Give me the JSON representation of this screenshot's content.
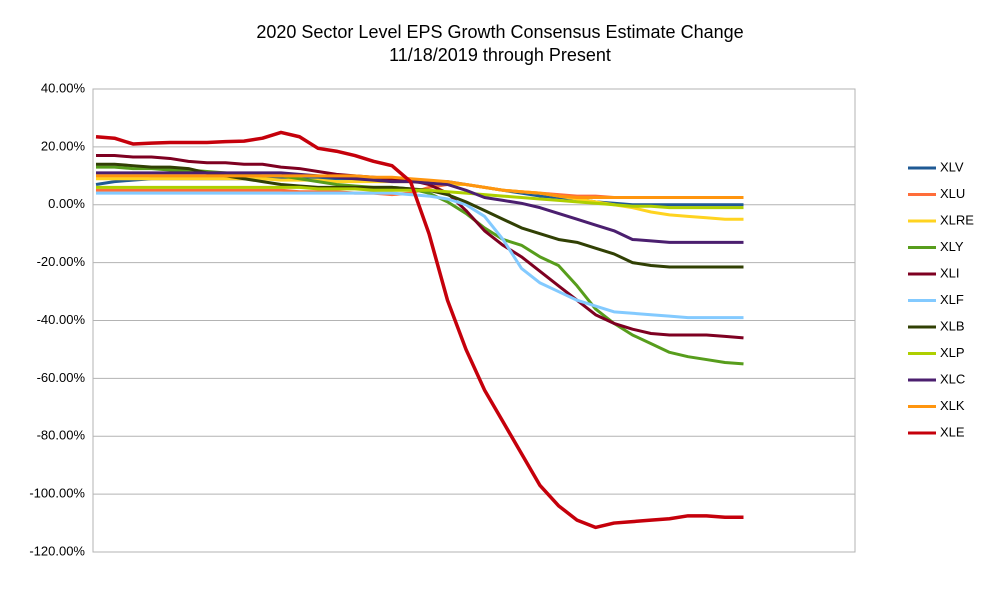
{
  "chart_data": {
    "type": "line",
    "title": "2020 Sector Level EPS Growth Consensus Estimate Change",
    "subtitle": "11/18/2019 through Present",
    "categories": [
      null,
      null,
      null,
      null,
      null,
      null,
      null,
      null,
      null,
      null,
      null,
      null,
      null,
      null,
      null,
      null,
      null,
      null,
      null,
      null,
      null,
      null,
      null,
      null,
      null,
      null,
      null,
      null,
      null,
      null,
      null,
      null,
      null,
      null,
      null,
      null
    ],
    "ylim": [
      -120,
      40
    ],
    "yticks": [
      {
        "value": -120,
        "label": "-120.00%"
      },
      {
        "value": -100,
        "label": "-100.00%"
      },
      {
        "value": -80,
        "label": "-80.00%"
      },
      {
        "value": -60,
        "label": "-60.00%"
      },
      {
        "value": -40,
        "label": "-40.00%"
      },
      {
        "value": -20,
        "label": "-20.00%"
      },
      {
        "value": 0,
        "label": "0.00%"
      },
      {
        "value": 20,
        "label": "20.00%"
      },
      {
        "value": 40,
        "label": "40.00%"
      }
    ],
    "grid": true,
    "legend": "right",
    "series": [
      {
        "name": "XLV",
        "color": "#1f5a94",
        "values": [
          7,
          8,
          8.5,
          9,
          9,
          9,
          9,
          9,
          9,
          9,
          9,
          9,
          9,
          9,
          9,
          9,
          8.5,
          8,
          8,
          8,
          7,
          6,
          5,
          4,
          3,
          2.5,
          2,
          1,
          0.5,
          0,
          0,
          0,
          0,
          0,
          0,
          0
        ]
      },
      {
        "name": "XLU",
        "color": "#ff6d3a",
        "values": [
          5,
          5,
          5,
          5,
          5,
          5,
          5,
          5,
          5,
          5,
          5,
          4.5,
          4.5,
          4.5,
          4,
          4,
          3.5,
          4,
          6,
          7,
          7,
          6,
          5,
          4.5,
          4,
          3.5,
          3,
          3,
          2.5,
          2.5,
          2.5,
          2.5,
          2.5,
          2.5,
          2.5,
          2.5
        ]
      },
      {
        "name": "XLRE",
        "color": "#ffd320",
        "values": [
          9,
          9,
          9,
          9,
          9,
          9,
          9,
          9,
          9,
          9,
          8.5,
          8.5,
          8.5,
          8,
          8,
          8,
          8,
          8,
          7.5,
          7,
          7,
          6,
          5,
          4.5,
          4,
          3,
          2,
          1,
          0,
          -1,
          -2.5,
          -3.5,
          -4,
          -4.5,
          -5,
          -5
        ]
      },
      {
        "name": "XLY",
        "color": "#579d1c",
        "values": [
          13,
          13,
          12.5,
          12.5,
          12,
          12,
          11.5,
          11,
          10.5,
          10,
          10,
          9,
          8,
          7,
          6.5,
          6,
          6,
          5.5,
          4,
          1,
          -3,
          -8,
          -12,
          -14,
          -18,
          -21,
          -28,
          -36,
          -41,
          -45,
          -48,
          -51,
          -52.5,
          -53.5,
          -54.5,
          -55
        ]
      },
      {
        "name": "XLI",
        "color": "#7e0021",
        "values": [
          17,
          17,
          16.5,
          16.5,
          16,
          15,
          14.5,
          14.5,
          14,
          14,
          13,
          12.5,
          11.5,
          10.5,
          10,
          9.5,
          9,
          8.5,
          7,
          4,
          -2,
          -9,
          -14,
          -18,
          -23,
          -28,
          -33,
          -38,
          -41,
          -43,
          -44.5,
          -45,
          -45,
          -45,
          -45.5,
          -46
        ]
      },
      {
        "name": "XLF",
        "color": "#83caff",
        "values": [
          4,
          4,
          4,
          4,
          4,
          4,
          4,
          4,
          4,
          4,
          4,
          4,
          4,
          4,
          4,
          4,
          4,
          3.5,
          3,
          2,
          0,
          -4,
          -12,
          -22,
          -27,
          -30,
          -33,
          -35,
          -37,
          -37.5,
          -38,
          -38.5,
          -39,
          -39,
          -39,
          -39
        ]
      },
      {
        "name": "XLB",
        "color": "#314004",
        "values": [
          14,
          14,
          13.5,
          13,
          13,
          12.5,
          11,
          10,
          9,
          8,
          7,
          6.5,
          6,
          6,
          6,
          6,
          6,
          5.5,
          5,
          3.5,
          1,
          -2,
          -5,
          -8,
          -10,
          -12,
          -13,
          -15,
          -17,
          -20,
          -21,
          -21.5,
          -21.5,
          -21.5,
          -21.5,
          -21.5
        ]
      },
      {
        "name": "XLP",
        "color": "#aecf00",
        "values": [
          6,
          6,
          6,
          6,
          6,
          6,
          6,
          6,
          6,
          6,
          6,
          6,
          5.5,
          5.5,
          5.5,
          5,
          5,
          5,
          5,
          4.5,
          4,
          3.5,
          3,
          2.5,
          2,
          1.5,
          1,
          0.5,
          0,
          -0.5,
          -0.5,
          -1,
          -1,
          -1,
          -1,
          -1
        ]
      },
      {
        "name": "XLC",
        "color": "#4b1f6f",
        "values": [
          11,
          11,
          11,
          11,
          11,
          11,
          11,
          11,
          11,
          11,
          11,
          10.5,
          10,
          9.5,
          9,
          8.5,
          8,
          8,
          7.5,
          7,
          5,
          2.5,
          1.5,
          0.5,
          -1,
          -3,
          -5,
          -7,
          -9,
          -12,
          -12.5,
          -13,
          -13,
          -13,
          -13,
          -13
        ]
      },
      {
        "name": "XLK",
        "color": "#ff950e",
        "values": [
          10,
          10,
          10,
          10,
          10,
          10,
          10,
          10,
          10,
          10,
          10,
          10,
          10,
          10,
          10,
          9.5,
          9.5,
          9,
          8.5,
          8,
          7,
          6,
          5,
          4.5,
          4,
          3,
          2.5,
          2.5,
          2.5,
          2.5,
          2.5,
          2.5,
          2.5,
          2.5,
          2.5,
          2.5
        ]
      },
      {
        "name": "XLE",
        "color": "#c5000b",
        "values": [
          23.5,
          23,
          21,
          21.3,
          21.5,
          21.5,
          21.5,
          21.8,
          22,
          23,
          25,
          23.5,
          19.5,
          18.5,
          17,
          15,
          13.5,
          8,
          -10,
          -33,
          -50,
          -64,
          -75,
          -86,
          -97,
          -104,
          -109,
          -111.5,
          -110,
          -109.5,
          -109,
          -108.5,
          -107.5,
          -107.5,
          -108,
          -108
        ]
      }
    ]
  }
}
